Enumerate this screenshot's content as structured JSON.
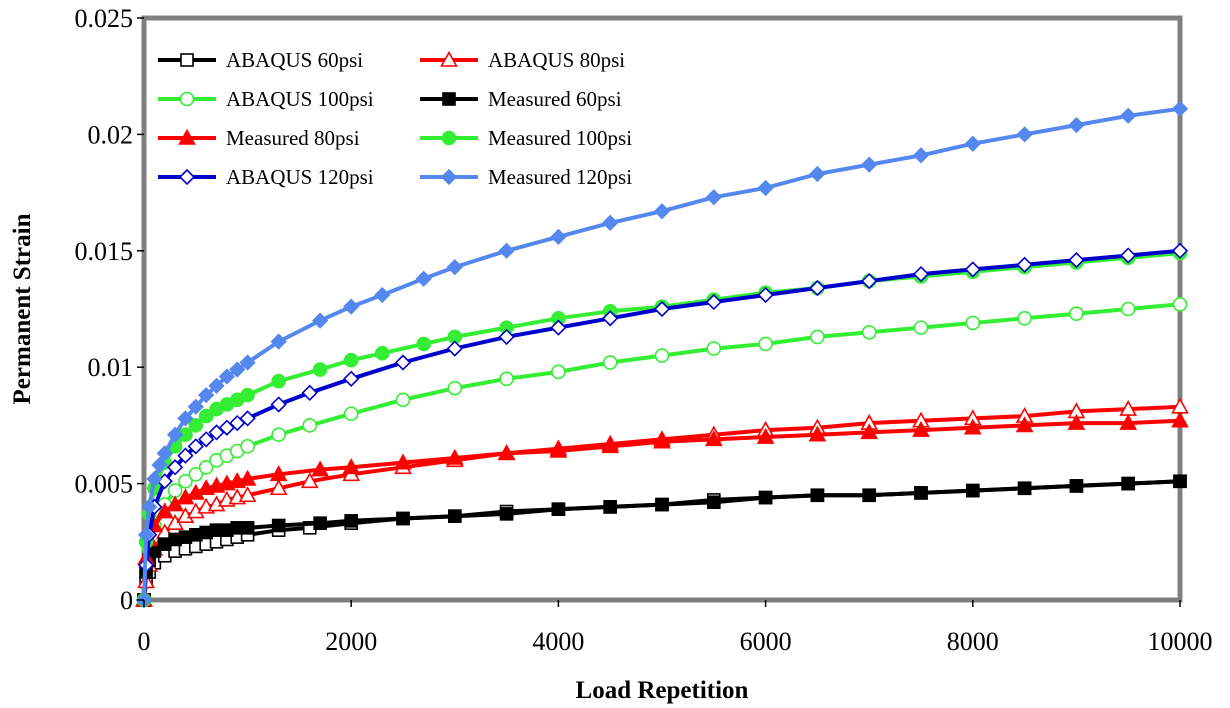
{
  "chart_data": {
    "type": "line",
    "title": "",
    "xlabel": "Load Repetition",
    "ylabel": "Permanent Strain",
    "xlim": [
      0,
      10000
    ],
    "ylim": [
      0,
      0.025
    ],
    "xticks": [
      0,
      2000,
      4000,
      6000,
      8000,
      10000
    ],
    "yticks": [
      0,
      0.005,
      0.01,
      0.015,
      0.02,
      0.025
    ],
    "xtick_labels": [
      "0",
      "2000",
      "4000",
      "6000",
      "8000",
      "10000"
    ],
    "ytick_labels": [
      "0",
      "0.005",
      "0.01",
      "0.015",
      "0.02",
      "0.025"
    ],
    "grid": false,
    "legend_position": "top-left",
    "series": [
      {
        "name": "ABAQUS 60psi",
        "color": "#000000",
        "marker": "square-open",
        "x": [
          0,
          20,
          50,
          100,
          200,
          300,
          400,
          500,
          600,
          700,
          800,
          900,
          1000,
          1300,
          1600,
          2000,
          2500,
          3000,
          3500,
          4000,
          4500,
          5000,
          5500,
          6000,
          6500,
          7000,
          7500,
          8000,
          8500,
          9000,
          9500,
          10000
        ],
        "y": [
          0,
          0.0008,
          0.0012,
          0.0016,
          0.0019,
          0.0021,
          0.0022,
          0.0023,
          0.0024,
          0.0025,
          0.0026,
          0.0027,
          0.0028,
          0.003,
          0.0031,
          0.0033,
          0.0035,
          0.0036,
          0.0038,
          0.0039,
          0.004,
          0.0041,
          0.0043,
          0.0044,
          0.0045,
          0.0045,
          0.0046,
          0.0047,
          0.0048,
          0.0049,
          0.005,
          0.0051
        ]
      },
      {
        "name": "ABAQUS 80psi",
        "color": "#ff0000",
        "marker": "triangle-open",
        "x": [
          0,
          20,
          50,
          100,
          200,
          300,
          400,
          500,
          600,
          700,
          800,
          900,
          1000,
          1300,
          1600,
          2000,
          2500,
          3000,
          3500,
          4000,
          4500,
          5000,
          5500,
          6000,
          6500,
          7000,
          7500,
          8000,
          8500,
          9000,
          9500,
          10000
        ],
        "y": [
          0,
          0.0008,
          0.0015,
          0.0022,
          0.0029,
          0.0033,
          0.0036,
          0.0038,
          0.004,
          0.0041,
          0.0043,
          0.0044,
          0.0045,
          0.0048,
          0.0051,
          0.0054,
          0.0057,
          0.006,
          0.0063,
          0.0065,
          0.0067,
          0.0069,
          0.0071,
          0.0073,
          0.0074,
          0.0076,
          0.0077,
          0.0078,
          0.0079,
          0.0081,
          0.0082,
          0.0083
        ]
      },
      {
        "name": "ABAQUS 100psi",
        "color": "#33ee33",
        "marker": "circle-open",
        "x": [
          0,
          20,
          50,
          100,
          200,
          300,
          400,
          500,
          600,
          700,
          800,
          900,
          1000,
          1300,
          1600,
          2000,
          2500,
          3000,
          3500,
          4000,
          4500,
          5000,
          5500,
          6000,
          6500,
          7000,
          7500,
          8000,
          8500,
          9000,
          9500,
          10000
        ],
        "y": [
          0,
          0.0012,
          0.0022,
          0.0032,
          0.0041,
          0.0047,
          0.0051,
          0.0054,
          0.0057,
          0.006,
          0.0062,
          0.0064,
          0.0066,
          0.0071,
          0.0075,
          0.008,
          0.0086,
          0.0091,
          0.0095,
          0.0098,
          0.0102,
          0.0105,
          0.0108,
          0.011,
          0.0113,
          0.0115,
          0.0117,
          0.0119,
          0.0121,
          0.0123,
          0.0125,
          0.0127
        ]
      },
      {
        "name": "Measured 60psi",
        "color": "#000000",
        "marker": "square-filled",
        "x": [
          0,
          20,
          50,
          100,
          200,
          300,
          400,
          500,
          600,
          700,
          800,
          900,
          1000,
          1300,
          1700,
          2000,
          2500,
          3000,
          3500,
          4000,
          4500,
          5000,
          5500,
          6000,
          6500,
          7000,
          7500,
          8000,
          8500,
          9000,
          9500,
          10000
        ],
        "y": [
          0,
          0.0012,
          0.0017,
          0.0021,
          0.0024,
          0.0026,
          0.0027,
          0.0028,
          0.0029,
          0.003,
          0.003,
          0.0031,
          0.0031,
          0.0032,
          0.0033,
          0.0034,
          0.0035,
          0.0036,
          0.0037,
          0.0039,
          0.004,
          0.0041,
          0.0042,
          0.0044,
          0.0045,
          0.0045,
          0.0046,
          0.0047,
          0.0048,
          0.0049,
          0.005,
          0.0051
        ]
      },
      {
        "name": "Measured 80psi",
        "color": "#ff0000",
        "marker": "triangle-filled",
        "x": [
          0,
          20,
          50,
          100,
          200,
          300,
          400,
          500,
          600,
          700,
          800,
          900,
          1000,
          1300,
          1700,
          2000,
          2500,
          3000,
          3500,
          4000,
          4500,
          5000,
          5500,
          6000,
          6500,
          7000,
          7500,
          8000,
          8500,
          9000,
          9500,
          10000
        ],
        "y": [
          0,
          0.0018,
          0.0026,
          0.0032,
          0.0038,
          0.0041,
          0.0044,
          0.0046,
          0.0048,
          0.0049,
          0.005,
          0.0051,
          0.0052,
          0.0054,
          0.0056,
          0.0057,
          0.0059,
          0.0061,
          0.0063,
          0.0064,
          0.0066,
          0.0068,
          0.0069,
          0.007,
          0.0071,
          0.0072,
          0.0073,
          0.0074,
          0.0075,
          0.0076,
          0.0076,
          0.0077
        ]
      },
      {
        "name": "Measured 100psi",
        "color": "#33ee33",
        "marker": "circle-filled",
        "x": [
          0,
          20,
          50,
          100,
          200,
          300,
          400,
          500,
          600,
          700,
          800,
          900,
          1000,
          1300,
          1700,
          2000,
          2300,
          2700,
          3000,
          3500,
          4000,
          4500,
          5000,
          5500,
          6000,
          6500,
          7000,
          7500,
          8000,
          8500,
          9000,
          9500,
          10000
        ],
        "y": [
          0,
          0.0025,
          0.0037,
          0.0048,
          0.0059,
          0.0066,
          0.0071,
          0.0075,
          0.0079,
          0.0082,
          0.0084,
          0.0086,
          0.0088,
          0.0094,
          0.0099,
          0.0103,
          0.0106,
          0.011,
          0.0113,
          0.0117,
          0.0121,
          0.0124,
          0.0126,
          0.0129,
          0.0132,
          0.0134,
          0.0137,
          0.0139,
          0.0141,
          0.0143,
          0.0145,
          0.0147,
          0.0149
        ]
      },
      {
        "name": "ABAQUS 120psi",
        "color": "#0000cc",
        "marker": "diamond-open",
        "x": [
          0,
          20,
          50,
          100,
          200,
          300,
          400,
          500,
          600,
          700,
          800,
          900,
          1000,
          1300,
          1600,
          2000,
          2500,
          3000,
          3500,
          4000,
          4500,
          5000,
          5500,
          6000,
          6500,
          7000,
          7500,
          8000,
          8500,
          9000,
          9500,
          10000
        ],
        "y": [
          0,
          0.0015,
          0.0028,
          0.004,
          0.0051,
          0.0057,
          0.0062,
          0.0066,
          0.0069,
          0.0072,
          0.0074,
          0.0076,
          0.0078,
          0.0084,
          0.0089,
          0.0095,
          0.0102,
          0.0108,
          0.0113,
          0.0117,
          0.0121,
          0.0125,
          0.0128,
          0.0131,
          0.0134,
          0.0137,
          0.014,
          0.0142,
          0.0144,
          0.0146,
          0.0148,
          0.015
        ]
      },
      {
        "name": "Measured 120psi",
        "color": "#5588ee",
        "marker": "diamond-filled",
        "x": [
          0,
          20,
          50,
          100,
          150,
          200,
          300,
          400,
          500,
          600,
          700,
          800,
          900,
          1000,
          1300,
          1700,
          2000,
          2300,
          2700,
          3000,
          3500,
          4000,
          4500,
          5000,
          5500,
          6000,
          6500,
          7000,
          7500,
          8000,
          8500,
          9000,
          9500,
          10000
        ],
        "y": [
          0,
          0.0028,
          0.004,
          0.0052,
          0.0058,
          0.0063,
          0.0071,
          0.0078,
          0.0083,
          0.0088,
          0.0092,
          0.0096,
          0.0099,
          0.0102,
          0.0111,
          0.012,
          0.0126,
          0.0131,
          0.0138,
          0.0143,
          0.015,
          0.0156,
          0.0162,
          0.0167,
          0.0173,
          0.0177,
          0.0183,
          0.0187,
          0.0191,
          0.0196,
          0.02,
          0.0204,
          0.0208,
          0.0211
        ]
      }
    ]
  }
}
